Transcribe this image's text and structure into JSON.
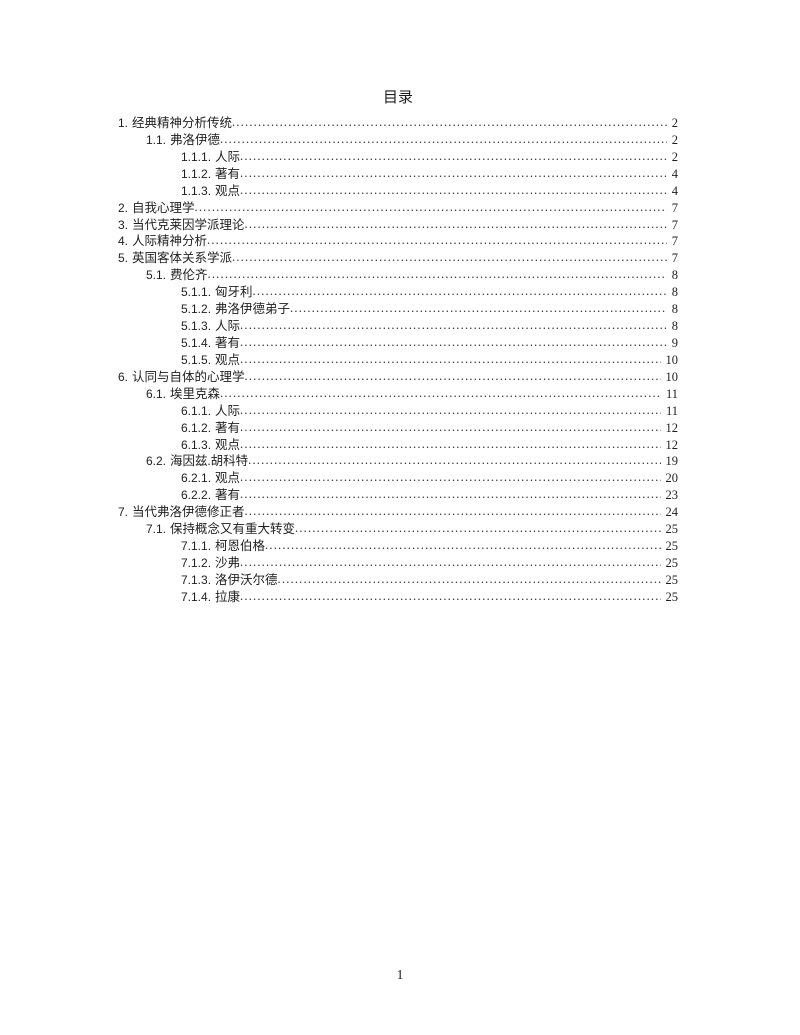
{
  "page": {
    "title": "目录",
    "footer_page_number": "1"
  },
  "toc": {
    "entries": [
      {
        "level": 1,
        "num": "1.",
        "label": "经典精神分析传统",
        "page": "2"
      },
      {
        "level": 2,
        "num": "1.1.",
        "label": "弗洛伊德",
        "page": "2"
      },
      {
        "level": 3,
        "num": "1.1.1.",
        "label": "人际",
        "page": "2"
      },
      {
        "level": 3,
        "num": "1.1.2.",
        "label": "著有",
        "page": "4"
      },
      {
        "level": 3,
        "num": "1.1.3.",
        "label": "观点",
        "page": "4"
      },
      {
        "level": 1,
        "num": "2.",
        "label": "自我心理学",
        "page": "7"
      },
      {
        "level": 1,
        "num": "3.",
        "label": "当代克莱因学派理论",
        "page": "7"
      },
      {
        "level": 1,
        "num": "4.",
        "label": "人际精神分析",
        "page": "7"
      },
      {
        "level": 1,
        "num": "5.",
        "label": "英国客体关系学派",
        "page": "7"
      },
      {
        "level": 2,
        "num": "5.1.",
        "label": "费伦齐",
        "page": "8"
      },
      {
        "level": 3,
        "num": "5.1.1.",
        "label": "匈牙利",
        "page": "8"
      },
      {
        "level": 3,
        "num": "5.1.2.",
        "label": "弗洛伊德弟子",
        "page": "8"
      },
      {
        "level": 3,
        "num": "5.1.3.",
        "label": "人际",
        "page": "8"
      },
      {
        "level": 3,
        "num": "5.1.4.",
        "label": "著有",
        "page": "9"
      },
      {
        "level": 3,
        "num": "5.1.5.",
        "label": "观点",
        "page": "10"
      },
      {
        "level": 1,
        "num": "6.",
        "label": "认同与自体的心理学",
        "page": "10"
      },
      {
        "level": 2,
        "num": "6.1.",
        "label": "埃里克森",
        "page": "11"
      },
      {
        "level": 3,
        "num": "6.1.1.",
        "label": "人际",
        "page": "11"
      },
      {
        "level": 3,
        "num": "6.1.2.",
        "label": "著有",
        "page": "12"
      },
      {
        "level": 3,
        "num": "6.1.3.",
        "label": "观点",
        "page": "12"
      },
      {
        "level": 2,
        "num": "6.2.",
        "label": "海因兹.胡科特",
        "page": "19"
      },
      {
        "level": 3,
        "num": "6.2.1.",
        "label": "观点",
        "page": "20"
      },
      {
        "level": 3,
        "num": "6.2.2.",
        "label": "著有",
        "page": "23"
      },
      {
        "level": 1,
        "num": "7.",
        "label": "当代弗洛伊德修正者",
        "page": "24"
      },
      {
        "level": 2,
        "num": "7.1.",
        "label": "保持概念又有重大转变",
        "page": "25"
      },
      {
        "level": 3,
        "num": "7.1.1.",
        "label": "柯恩伯格",
        "page": "25"
      },
      {
        "level": 3,
        "num": "7.1.2.",
        "label": "沙弗",
        "page": "25"
      },
      {
        "level": 3,
        "num": "7.1.3.",
        "label": "洛伊沃尔德",
        "page": "25"
      },
      {
        "level": 3,
        "num": "7.1.4.",
        "label": "拉康",
        "page": "25"
      }
    ]
  }
}
